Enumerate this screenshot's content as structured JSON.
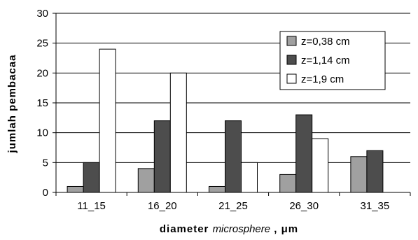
{
  "chart_data": {
    "type": "bar",
    "title": "",
    "categories": [
      "11_15",
      "16_20",
      "21_25",
      "26_30",
      "31_35"
    ],
    "series": [
      {
        "name": "z=0,38 cm",
        "values": [
          1,
          4,
          1,
          3,
          6
        ],
        "color": "#a0a0a0"
      },
      {
        "name": "z=1,14 cm",
        "values": [
          5,
          12,
          12,
          13,
          7
        ],
        "color": "#4d4d4d"
      },
      {
        "name": "z=1,9 cm",
        "values": [
          24,
          20,
          5,
          9,
          0
        ],
        "color": "#ffffff"
      }
    ],
    "ylabel": "jumlah pembacaa",
    "xlabel_parts": {
      "prefix": "diameter ",
      "italic": "microsphere",
      "suffix": " , μm"
    },
    "ylim": [
      0,
      30
    ],
    "yticks": [
      0,
      5,
      10,
      15,
      20,
      25,
      30
    ],
    "grid": true,
    "legend_position": "top-right"
  }
}
